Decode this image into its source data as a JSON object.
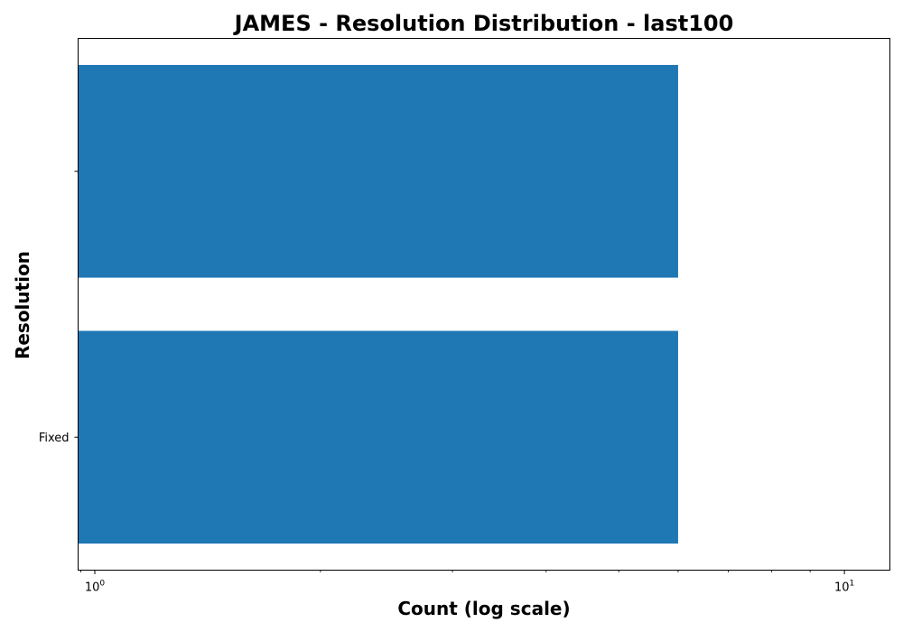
{
  "chart_data": {
    "type": "bar",
    "orientation": "horizontal",
    "title": "JAMES - Resolution Distribution - last100",
    "xlabel": "Count (log scale)",
    "ylabel": "Resolution",
    "x_scale": "log",
    "xlim": [
      0.95,
      11.5
    ],
    "categories": [
      "Fixed",
      ""
    ],
    "values": [
      6,
      6
    ],
    "x_major_ticks": [
      {
        "value": 1,
        "base": "10",
        "exp": "0"
      },
      {
        "value": 10,
        "base": "10",
        "exp": "1"
      }
    ],
    "bar_color": "#1f77b4",
    "grid": false,
    "legend": "none"
  }
}
